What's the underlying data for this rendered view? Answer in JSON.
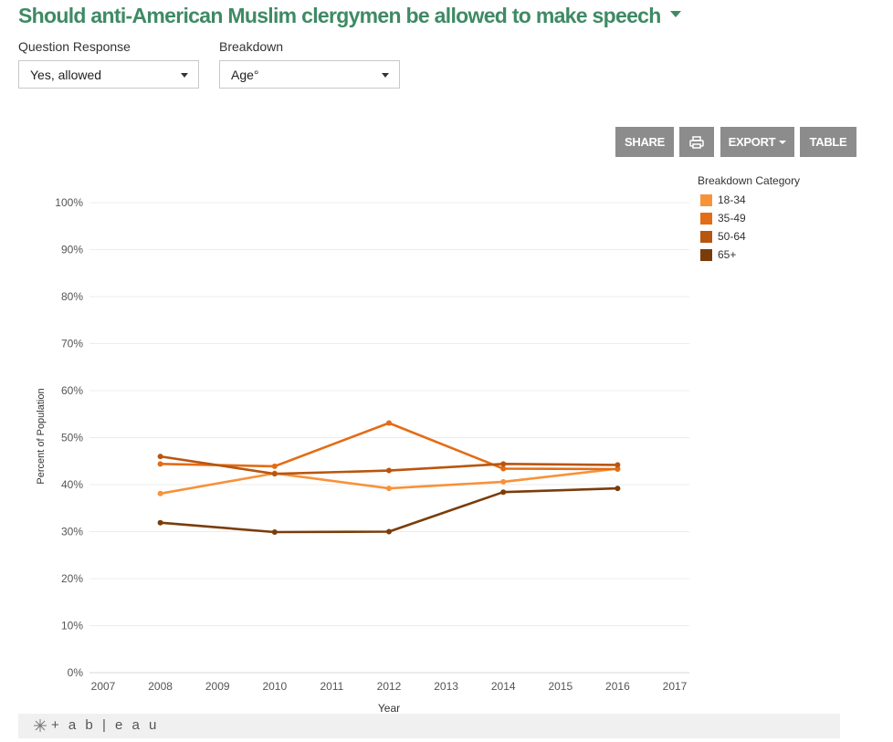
{
  "header": {
    "title": "Should anti-American Muslim clergymen be allowed to make speech"
  },
  "filters": {
    "response_label": "Question Response",
    "response_value": "Yes, allowed",
    "breakdown_label": "Breakdown",
    "breakdown_value": "Age°"
  },
  "toolbar": {
    "share": "SHARE",
    "export": "EXPORT",
    "table": "TABLE"
  },
  "legend": {
    "title": "Breakdown Category",
    "items": [
      {
        "label": "18-34",
        "color": "#f7923a"
      },
      {
        "label": "35-49",
        "color": "#e36c16"
      },
      {
        "label": "50-64",
        "color": "#b8560f"
      },
      {
        "label": "65+",
        "color": "#7a3d0a"
      }
    ]
  },
  "footer": {
    "brand": "+ a b | e a u"
  },
  "chart_data": {
    "type": "line",
    "xlabel": "Year",
    "ylabel": "Percent of Population",
    "x_ticks": [
      "2007",
      "2008",
      "2009",
      "2010",
      "2011",
      "2012",
      "2013",
      "2014",
      "2015",
      "2016",
      "2017"
    ],
    "y_ticks": [
      "0%",
      "10%",
      "20%",
      "30%",
      "40%",
      "50%",
      "60%",
      "70%",
      "80%",
      "90%",
      "100%"
    ],
    "xlim": [
      2007,
      2017
    ],
    "ylim": [
      0,
      100
    ],
    "grid": true,
    "legend_position": "top-right",
    "series": [
      {
        "name": "18-34",
        "color": "#f7923a",
        "x": [
          2008,
          2010,
          2012,
          2014,
          2016
        ],
        "values": [
          38.1,
          42.4,
          39.2,
          40.6,
          43.4
        ]
      },
      {
        "name": "35-49",
        "color": "#e36c16",
        "x": [
          2008,
          2010,
          2012,
          2014,
          2016
        ],
        "values": [
          44.4,
          43.9,
          53.1,
          43.4,
          43.3
        ]
      },
      {
        "name": "50-64",
        "color": "#b8560f",
        "x": [
          2008,
          2010,
          2012,
          2014,
          2016
        ],
        "values": [
          46.0,
          42.3,
          43.0,
          44.4,
          44.2
        ]
      },
      {
        "name": "65+",
        "color": "#7a3d0a",
        "x": [
          2008,
          2010,
          2012,
          2014,
          2016
        ],
        "values": [
          31.9,
          29.9,
          30.0,
          38.4,
          39.2
        ]
      }
    ]
  }
}
